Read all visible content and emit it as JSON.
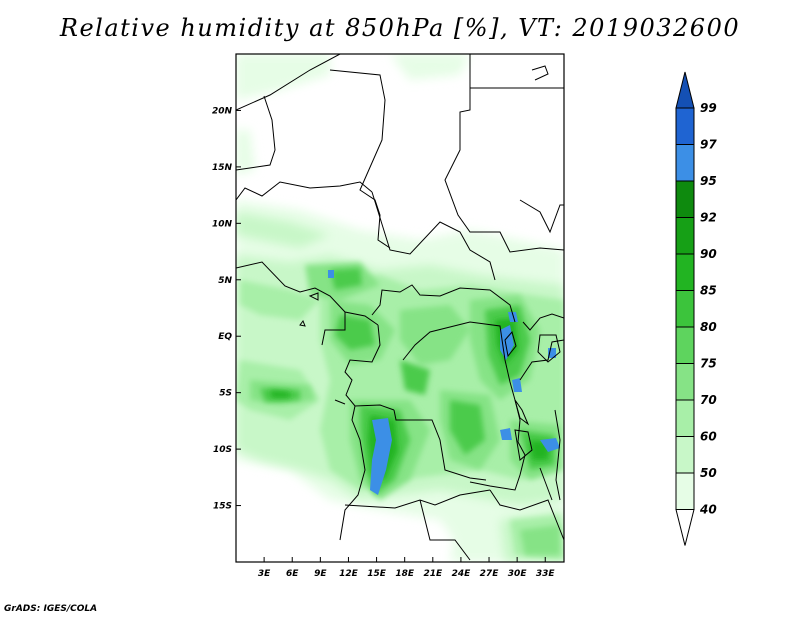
{
  "title": "Relative humidity at 850hPa [%], VT: 2019032600",
  "credit": "GrADS: IGES/COLA",
  "map": {
    "lon_ticks": [
      "3E",
      "6E",
      "9E",
      "12E",
      "15E",
      "18E",
      "21E",
      "24E",
      "27E",
      "30E",
      "33E"
    ],
    "lat_ticks": [
      "20N",
      "15N",
      "10N",
      "5N",
      "EQ",
      "5S",
      "10S",
      "15S"
    ],
    "lon_values": [
      3,
      6,
      9,
      12,
      15,
      18,
      21,
      24,
      27,
      30,
      33
    ],
    "lat_values": [
      20,
      15,
      10,
      5,
      0,
      -5,
      -10,
      -15
    ],
    "lon_range": [
      0,
      35
    ],
    "lat_range": [
      -20,
      25
    ]
  },
  "colorbar": {
    "labels": [
      "99",
      "97",
      "95",
      "92",
      "90",
      "85",
      "80",
      "75",
      "70",
      "60",
      "50",
      "40"
    ],
    "levels": [
      40,
      50,
      60,
      70,
      75,
      80,
      85,
      90,
      92,
      95,
      97,
      99
    ],
    "colors": [
      "#ffffff",
      "#e6fde6",
      "#c8f7c8",
      "#a8efa8",
      "#86e386",
      "#5ed45e",
      "#3cc43c",
      "#22b422",
      "#16a016",
      "#0e8a0e",
      "#3c8fe6",
      "#1f64d2",
      "#1450b4"
    ]
  }
}
